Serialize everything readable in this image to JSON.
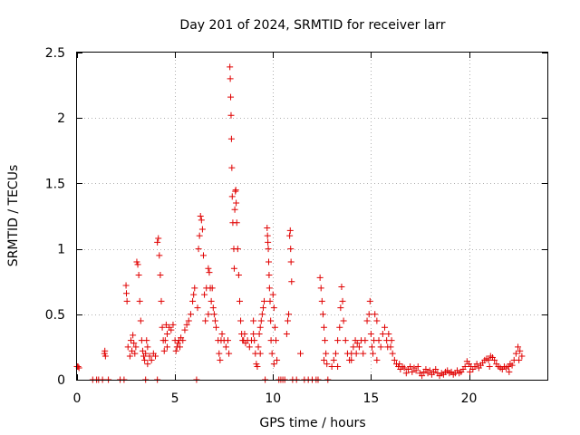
{
  "chart_data": {
    "type": "scatter",
    "title": "Day 201 of 2024, SRMTID for receiver larr",
    "xlabel": "GPS time / hours",
    "ylabel": "SRMTID / TECUs",
    "xlim": [
      0,
      24
    ],
    "ylim": [
      0,
      2.5
    ],
    "xticks": [
      0,
      5,
      10,
      15,
      20
    ],
    "xtick_labels": [
      "0",
      "5",
      "10",
      "15",
      "20"
    ],
    "yticks": [
      0,
      0.5,
      1,
      1.5,
      2,
      2.5
    ],
    "ytick_labels": [
      "0",
      "0.5",
      "1",
      "1.5",
      "2",
      "2.5"
    ],
    "grid": true,
    "marker": "+",
    "color": "#e00000",
    "series": [
      {
        "name": "SRMTID",
        "points": [
          [
            0.0,
            0.1
          ],
          [
            0.05,
            0.1
          ],
          [
            0.1,
            0.09
          ],
          [
            0.8,
            0.0
          ],
          [
            1.0,
            0.0
          ],
          [
            1.1,
            0.0
          ],
          [
            1.3,
            0.0
          ],
          [
            1.4,
            0.2
          ],
          [
            1.42,
            0.22
          ],
          [
            1.45,
            0.18
          ],
          [
            1.6,
            0.0
          ],
          [
            2.2,
            0.0
          ],
          [
            2.4,
            0.0
          ],
          [
            2.5,
            0.72
          ],
          [
            2.52,
            0.66
          ],
          [
            2.55,
            0.6
          ],
          [
            2.6,
            0.25
          ],
          [
            2.7,
            0.18
          ],
          [
            2.75,
            0.3
          ],
          [
            2.8,
            0.22
          ],
          [
            2.85,
            0.34
          ],
          [
            2.9,
            0.28
          ],
          [
            2.95,
            0.2
          ],
          [
            3.05,
            0.9
          ],
          [
            3.1,
            0.88
          ],
          [
            3.15,
            0.8
          ],
          [
            3.2,
            0.6
          ],
          [
            3.25,
            0.45
          ],
          [
            3.3,
            0.3
          ],
          [
            3.35,
            0.22
          ],
          [
            3.4,
            0.18
          ],
          [
            3.45,
            0.15
          ],
          [
            3.5,
            0.2
          ],
          [
            3.5,
            0.0
          ],
          [
            3.55,
            0.3
          ],
          [
            3.6,
            0.25
          ],
          [
            3.7,
            0.18
          ],
          [
            3.8,
            0.15
          ],
          [
            3.9,
            0.2
          ],
          [
            4.0,
            0.18
          ],
          [
            4.1,
            0.0
          ],
          [
            4.1,
            1.05
          ],
          [
            4.15,
            1.08
          ],
          [
            4.2,
            0.95
          ],
          [
            4.25,
            0.8
          ],
          [
            4.3,
            0.6
          ],
          [
            4.35,
            0.4
          ],
          [
            4.4,
            0.3
          ],
          [
            4.45,
            0.22
          ],
          [
            4.5,
            0.3
          ],
          [
            4.55,
            0.42
          ],
          [
            4.6,
            0.35
          ],
          [
            4.7,
            0.4
          ],
          [
            4.8,
            0.38
          ],
          [
            4.9,
            0.42
          ],
          [
            5.0,
            0.3
          ],
          [
            5.05,
            0.22
          ],
          [
            5.1,
            0.25
          ],
          [
            5.15,
            0.28
          ],
          [
            5.2,
            0.3
          ],
          [
            5.3,
            0.32
          ],
          [
            5.4,
            0.3
          ],
          [
            5.5,
            0.38
          ],
          [
            5.6,
            0.42
          ],
          [
            5.7,
            0.45
          ],
          [
            5.8,
            0.5
          ],
          [
            5.9,
            0.6
          ],
          [
            5.95,
            0.65
          ],
          [
            6.0,
            0.7
          ],
          [
            6.1,
            0.0
          ],
          [
            6.2,
            1.0
          ],
          [
            6.25,
            1.1
          ],
          [
            6.3,
            1.25
          ],
          [
            6.35,
            1.22
          ],
          [
            6.4,
            1.15
          ],
          [
            6.45,
            0.95
          ],
          [
            6.5,
            0.65
          ],
          [
            6.55,
            0.45
          ],
          [
            6.6,
            0.7
          ],
          [
            6.7,
            0.85
          ],
          [
            6.75,
            0.82
          ],
          [
            6.8,
            0.7
          ],
          [
            6.85,
            0.6
          ],
          [
            6.9,
            0.7
          ],
          [
            6.95,
            0.55
          ],
          [
            7.0,
            0.5
          ],
          [
            7.05,
            0.45
          ],
          [
            7.1,
            0.4
          ],
          [
            7.2,
            0.3
          ],
          [
            7.25,
            0.2
          ],
          [
            7.3,
            0.15
          ],
          [
            7.4,
            0.35
          ],
          [
            7.5,
            0.3
          ],
          [
            7.6,
            0.25
          ],
          [
            7.7,
            0.3
          ],
          [
            7.75,
            0.2
          ],
          [
            7.8,
            2.39
          ],
          [
            7.82,
            2.3
          ],
          [
            7.84,
            2.16
          ],
          [
            7.86,
            2.02
          ],
          [
            7.88,
            1.84
          ],
          [
            7.9,
            1.62
          ],
          [
            7.92,
            1.4
          ],
          [
            7.95,
            1.2
          ],
          [
            8.0,
            1.0
          ],
          [
            8.02,
            0.85
          ],
          [
            8.05,
            1.3
          ],
          [
            8.08,
            1.44
          ],
          [
            8.1,
            1.45
          ],
          [
            8.12,
            1.35
          ],
          [
            8.15,
            1.2
          ],
          [
            8.2,
            1.0
          ],
          [
            8.25,
            0.8
          ],
          [
            8.3,
            0.6
          ],
          [
            8.35,
            0.45
          ],
          [
            8.4,
            0.35
          ],
          [
            8.5,
            0.3
          ],
          [
            8.6,
            0.28
          ],
          [
            8.7,
            0.3
          ],
          [
            8.8,
            0.25
          ],
          [
            8.9,
            0.3
          ],
          [
            9.0,
            0.35
          ],
          [
            9.05,
            0.3
          ],
          [
            9.1,
            0.2
          ],
          [
            9.15,
            0.12
          ],
          [
            9.2,
            0.1
          ],
          [
            9.25,
            0.25
          ],
          [
            9.3,
            0.35
          ],
          [
            9.35,
            0.4
          ],
          [
            9.4,
            0.45
          ],
          [
            9.45,
            0.5
          ],
          [
            9.5,
            0.55
          ],
          [
            9.55,
            0.6
          ],
          [
            9.6,
            0.0
          ],
          [
            9.7,
            1.16
          ],
          [
            9.72,
            1.1
          ],
          [
            9.74,
            1.05
          ],
          [
            9.76,
            1.0
          ],
          [
            9.78,
            0.9
          ],
          [
            9.8,
            0.8
          ],
          [
            9.82,
            0.7
          ],
          [
            9.85,
            0.6
          ],
          [
            9.88,
            0.45
          ],
          [
            9.9,
            0.3
          ],
          [
            9.95,
            0.2
          ],
          [
            10.0,
            0.65
          ],
          [
            10.05,
            0.55
          ],
          [
            10.1,
            0.4
          ],
          [
            10.15,
            0.3
          ],
          [
            10.2,
            0.15
          ],
          [
            10.3,
            0.0
          ],
          [
            10.4,
            0.0
          ],
          [
            10.5,
            0.0
          ],
          [
            10.6,
            0.0
          ],
          [
            10.7,
            0.35
          ],
          [
            10.75,
            0.45
          ],
          [
            10.8,
            0.5
          ],
          [
            10.85,
            1.1
          ],
          [
            10.88,
            1.14
          ],
          [
            10.9,
            1.0
          ],
          [
            10.92,
            0.9
          ],
          [
            10.95,
            0.75
          ],
          [
            11.0,
            0.0
          ],
          [
            11.2,
            0.0
          ],
          [
            11.4,
            0.2
          ],
          [
            11.6,
            0.0
          ],
          [
            11.8,
            0.0
          ],
          [
            12.0,
            0.0
          ],
          [
            12.2,
            0.0
          ],
          [
            12.3,
            0.0
          ],
          [
            12.4,
            0.78
          ],
          [
            12.45,
            0.7
          ],
          [
            12.5,
            0.6
          ],
          [
            12.55,
            0.5
          ],
          [
            12.6,
            0.4
          ],
          [
            12.65,
            0.3
          ],
          [
            12.7,
            0.2
          ],
          [
            12.75,
            0.12
          ],
          [
            12.8,
            0.0
          ],
          [
            13.0,
            0.1
          ],
          [
            13.1,
            0.15
          ],
          [
            13.2,
            0.2
          ],
          [
            13.3,
            0.3
          ],
          [
            13.4,
            0.4
          ],
          [
            13.45,
            0.55
          ],
          [
            13.5,
            0.71
          ],
          [
            13.55,
            0.6
          ],
          [
            13.6,
            0.45
          ],
          [
            13.7,
            0.3
          ],
          [
            13.8,
            0.2
          ],
          [
            13.9,
            0.15
          ],
          [
            14.0,
            0.2
          ],
          [
            14.1,
            0.25
          ],
          [
            14.2,
            0.3
          ],
          [
            14.3,
            0.28
          ],
          [
            14.4,
            0.25
          ],
          [
            14.5,
            0.3
          ],
          [
            14.6,
            0.2
          ],
          [
            14.7,
            0.3
          ],
          [
            14.8,
            0.45
          ],
          [
            14.9,
            0.5
          ],
          [
            14.95,
            0.6
          ],
          [
            15.0,
            0.35
          ],
          [
            15.05,
            0.25
          ],
          [
            15.1,
            0.2
          ],
          [
            15.15,
            0.3
          ],
          [
            15.2,
            0.5
          ],
          [
            15.3,
            0.45
          ],
          [
            15.4,
            0.3
          ],
          [
            15.5,
            0.25
          ],
          [
            15.6,
            0.35
          ],
          [
            15.7,
            0.4
          ],
          [
            15.8,
            0.3
          ],
          [
            15.9,
            0.35
          ],
          [
            16.0,
            0.25
          ],
          [
            16.1,
            0.2
          ],
          [
            16.2,
            0.15
          ],
          [
            16.3,
            0.12
          ],
          [
            16.4,
            0.1
          ],
          [
            16.5,
            0.08
          ],
          [
            16.6,
            0.1
          ],
          [
            16.7,
            0.09
          ],
          [
            16.8,
            0.05
          ],
          [
            16.9,
            0.08
          ],
          [
            17.0,
            0.1
          ],
          [
            17.1,
            0.06
          ],
          [
            17.2,
            0.09
          ],
          [
            17.3,
            0.07
          ],
          [
            17.4,
            0.1
          ],
          [
            17.5,
            0.05
          ],
          [
            17.6,
            0.03
          ],
          [
            17.7,
            0.06
          ],
          [
            17.8,
            0.08
          ],
          [
            17.9,
            0.05
          ],
          [
            18.0,
            0.07
          ],
          [
            18.1,
            0.04
          ],
          [
            18.2,
            0.06
          ],
          [
            18.3,
            0.08
          ],
          [
            18.4,
            0.05
          ],
          [
            18.5,
            0.03
          ],
          [
            18.6,
            0.05
          ],
          [
            18.7,
            0.04
          ],
          [
            18.8,
            0.06
          ],
          [
            18.9,
            0.07
          ],
          [
            19.0,
            0.05
          ],
          [
            19.1,
            0.06
          ],
          [
            19.2,
            0.04
          ],
          [
            19.3,
            0.05
          ],
          [
            19.4,
            0.07
          ],
          [
            19.5,
            0.05
          ],
          [
            19.6,
            0.06
          ],
          [
            19.7,
            0.08
          ],
          [
            19.8,
            0.1
          ],
          [
            19.9,
            0.14
          ],
          [
            20.0,
            0.12
          ],
          [
            20.1,
            0.1
          ],
          [
            20.2,
            0.08
          ],
          [
            20.3,
            0.1
          ],
          [
            20.4,
            0.12
          ],
          [
            20.5,
            0.09
          ],
          [
            20.6,
            0.11
          ],
          [
            20.7,
            0.13
          ],
          [
            20.8,
            0.15
          ],
          [
            20.9,
            0.16
          ],
          [
            21.0,
            0.15
          ],
          [
            21.1,
            0.18
          ],
          [
            21.2,
            0.17
          ],
          [
            21.3,
            0.15
          ],
          [
            21.4,
            0.12
          ],
          [
            21.5,
            0.1
          ],
          [
            21.6,
            0.09
          ],
          [
            21.7,
            0.08
          ],
          [
            21.8,
            0.1
          ],
          [
            21.9,
            0.09
          ],
          [
            22.0,
            0.1
          ],
          [
            22.1,
            0.12
          ],
          [
            22.2,
            0.11
          ],
          [
            22.3,
            0.15
          ],
          [
            22.4,
            0.2
          ],
          [
            22.5,
            0.25
          ],
          [
            22.6,
            0.22
          ],
          [
            22.7,
            0.18
          ],
          [
            3.0,
            0.25
          ],
          [
            3.6,
            0.12
          ],
          [
            4.6,
            0.25
          ],
          [
            5.25,
            0.25
          ],
          [
            6.15,
            0.55
          ],
          [
            6.7,
            0.5
          ],
          [
            7.35,
            0.3
          ],
          [
            8.45,
            0.3
          ],
          [
            8.55,
            0.35
          ],
          [
            9.0,
            0.45
          ],
          [
            9.35,
            0.2
          ],
          [
            10.05,
            0.12
          ],
          [
            12.6,
            0.15
          ],
          [
            13.3,
            0.1
          ],
          [
            14.0,
            0.15
          ],
          [
            14.25,
            0.2
          ],
          [
            15.3,
            0.15
          ],
          [
            15.85,
            0.25
          ],
          [
            16.05,
            0.3
          ],
          [
            16.45,
            0.12
          ],
          [
            20.05,
            0.06
          ],
          [
            21.05,
            0.1
          ],
          [
            22.05,
            0.06
          ],
          [
            22.55,
            0.15
          ]
        ]
      }
    ]
  }
}
